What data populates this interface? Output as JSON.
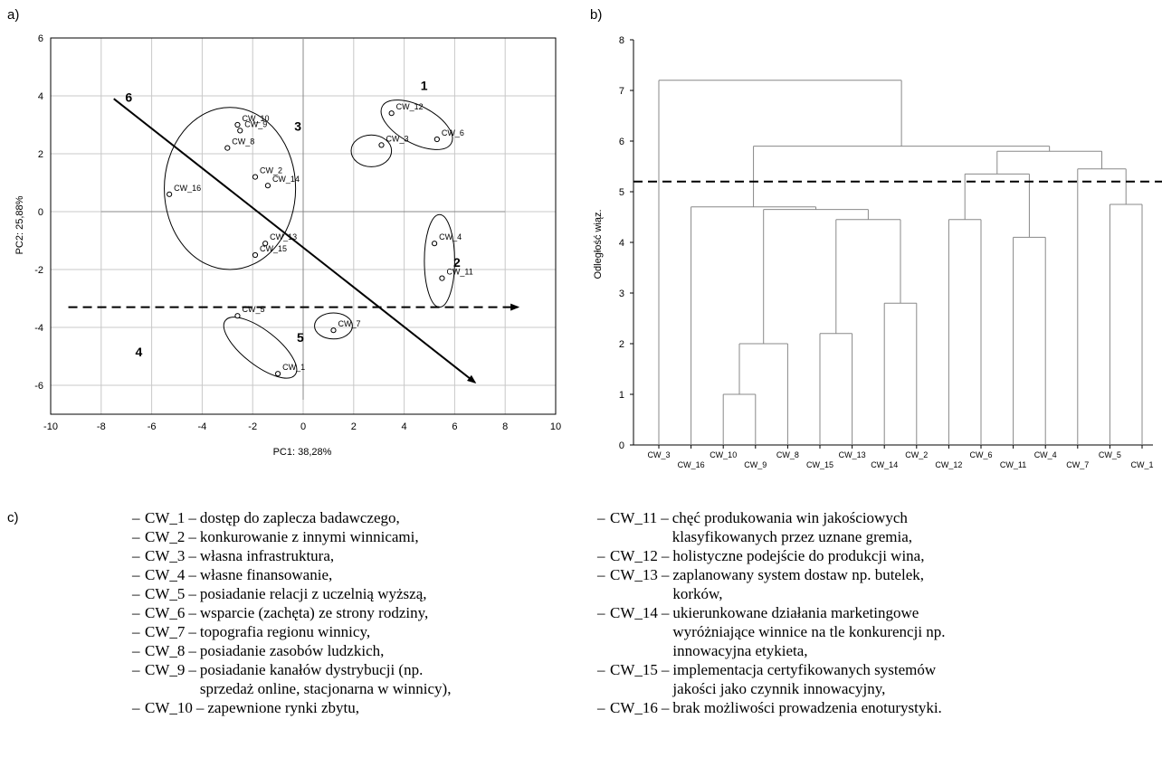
{
  "panels": {
    "a": "a)",
    "b": "b)",
    "c": "c)"
  },
  "chart_data": [
    {
      "type": "scatter",
      "xlabel": "PC1: 38,28%",
      "ylabel": "PC2: 25,88%",
      "xlim": [
        -10,
        10
      ],
      "ylim": [
        -7,
        6
      ],
      "xticks": [
        -10,
        -8,
        -6,
        -4,
        -2,
        0,
        2,
        4,
        6,
        8,
        10
      ],
      "yticks": [
        -6,
        -4,
        -2,
        0,
        2,
        4,
        6
      ],
      "points": [
        {
          "label": "CW_1",
          "x": -1.0,
          "y": -5.6
        },
        {
          "label": "CW_2",
          "x": -1.9,
          "y": 1.2
        },
        {
          "label": "CW_3",
          "x": 3.1,
          "y": 2.3
        },
        {
          "label": "CW_4",
          "x": 5.2,
          "y": -1.1
        },
        {
          "label": "CW_5",
          "x": -2.6,
          "y": -3.6
        },
        {
          "label": "CW_6",
          "x": 5.3,
          "y": 2.5
        },
        {
          "label": "CW_7",
          "x": 1.2,
          "y": -4.1
        },
        {
          "label": "CW_8",
          "x": -3.0,
          "y": 2.2
        },
        {
          "label": "CW_9",
          "x": -2.5,
          "y": 2.8
        },
        {
          "label": "CW_10",
          "x": -2.6,
          "y": 3.0
        },
        {
          "label": "CW_11",
          "x": 5.5,
          "y": -2.3
        },
        {
          "label": "CW_12",
          "x": 3.5,
          "y": 3.4
        },
        {
          "label": "CW_13",
          "x": -1.5,
          "y": -1.1
        },
        {
          "label": "CW_14",
          "x": -1.4,
          "y": 0.9
        },
        {
          "label": "CW_15",
          "x": -1.9,
          "y": -1.5
        },
        {
          "label": "CW_16",
          "x": -5.3,
          "y": 0.6
        }
      ],
      "clusters": [
        {
          "label": "1",
          "cx": 4.5,
          "cy": 3.0
        },
        {
          "label": "2",
          "cx": 5.4,
          "cy": -1.7
        },
        {
          "label": "3",
          "cx": 2.7,
          "cy": 2.1
        },
        {
          "label": "4",
          "cx": -1.7,
          "cy": -4.7
        },
        {
          "label": "5",
          "cx": 1.3,
          "cy": -3.9
        },
        {
          "label": "6",
          "cx": -2.8,
          "cy": 0.8
        }
      ],
      "arrows": [
        {
          "style": "solid",
          "from": [
            -7.5,
            3.9
          ],
          "to": [
            6.8,
            -5.9
          ]
        },
        {
          "style": "dashed",
          "from": [
            -9.3,
            -3.3
          ],
          "to": [
            8.5,
            -3.3
          ]
        }
      ]
    },
    {
      "type": "dendrogram",
      "ylabel": "Odległość wiąz.",
      "ylim": [
        0,
        8
      ],
      "yticks": [
        0,
        1,
        2,
        3,
        4,
        5,
        6,
        7,
        8
      ],
      "leaves": [
        "CW_3",
        "CW_16",
        "CW_10",
        "CW_9",
        "CW_8",
        "CW_15",
        "CW_13",
        "CW_14",
        "CW_2",
        "CW_12",
        "CW_6",
        "CW_11",
        "CW_4",
        "CW_7",
        "CW_5",
        "CW_1"
      ],
      "merges": [
        {
          "a": "CW_10",
          "b": "CW_9",
          "height": 1.0
        },
        {
          "a": "{CW_10,CW_9}",
          "b": "CW_8",
          "height": 2.0
        },
        {
          "a": "CW_15",
          "b": "CW_13",
          "height": 2.2
        },
        {
          "a": "CW_14",
          "b": "CW_2",
          "height": 2.8
        },
        {
          "a": "CW_11",
          "b": "CW_4",
          "height": 4.1
        },
        {
          "a": "CW_12",
          "b": "CW_6",
          "height": 4.45
        },
        {
          "a": "{CW_15,CW_13}",
          "b": "{CW_14,CW_2}",
          "height": 4.45
        },
        {
          "a": "{CW_10,CW_9,CW_8}",
          "b": "{CW_15,CW_13,CW_14,CW_2}",
          "height": 4.65
        },
        {
          "a": "CW_16",
          "b": "{CW_10,CW_9,CW_8,CW_15,CW_13,CW_14,CW_2}",
          "height": 4.7
        },
        {
          "a": "CW_5",
          "b": "CW_1",
          "height": 4.75
        },
        {
          "a": "{CW_12,CW_6}",
          "b": "{CW_11,CW_4}",
          "height": 5.35
        },
        {
          "a": "CW_7",
          "b": "{CW_5,CW_1}",
          "height": 5.45
        },
        {
          "a": "{CW_12,CW_6,CW_11,CW_4}",
          "b": "{CW_7,CW_5,CW_1}",
          "height": 5.8
        },
        {
          "a": "{CW_16..CW_2}",
          "b": "{CW_12..CW_1}",
          "height": 5.9
        },
        {
          "a": "CW_3",
          "b": "rest",
          "height": 7.2
        }
      ],
      "cut_line": 5.2
    }
  ],
  "legend_left": [
    {
      "code": "CW_1",
      "desc": "dostęp do zaplecza badawczego,"
    },
    {
      "code": "CW_2",
      "desc": "konkurowanie z innymi winnicami,"
    },
    {
      "code": "CW_3",
      "desc": "własna infrastruktura,"
    },
    {
      "code": "CW_4",
      "desc": "własne finansowanie,"
    },
    {
      "code": "CW_5",
      "desc": "posiadanie relacji z uczelnią wyższą,"
    },
    {
      "code": "CW_6",
      "desc": "wsparcie (zachęta) ze strony rodziny,"
    },
    {
      "code": "CW_7",
      "desc": "topografia regionu winnicy,"
    },
    {
      "code": "CW_8",
      "desc": "posiadanie zasobów ludzkich,"
    },
    {
      "code": "CW_9",
      "desc": "posiadanie kanałów dystrybucji (np. sprzedaż online, stacjonarna w winnicy),"
    },
    {
      "code": "CW_10",
      "desc": "zapewnione rynki zbytu,"
    }
  ],
  "legend_right": [
    {
      "code": "CW_11",
      "desc": "chęć produkowania win jakościowych klasyfikowanych przez uznane gremia,"
    },
    {
      "code": "CW_12",
      "desc": "holistyczne podejście do produkcji wina,"
    },
    {
      "code": "CW_13",
      "desc": "zaplanowany system dostaw np. butelek, korków,"
    },
    {
      "code": "CW_14",
      "desc": "ukierunkowane działania marketingowe wyróżniające winnice na tle konkurencji np. innowacyjna etykieta,"
    },
    {
      "code": "CW_15",
      "desc": "implementacja certyfikowanych systemów jakości jako czynnik innowacyjny,"
    },
    {
      "code": "CW_16",
      "desc": "brak możliwości prowadzenia enoturystyki."
    }
  ],
  "dash": "–",
  "sep": "–"
}
